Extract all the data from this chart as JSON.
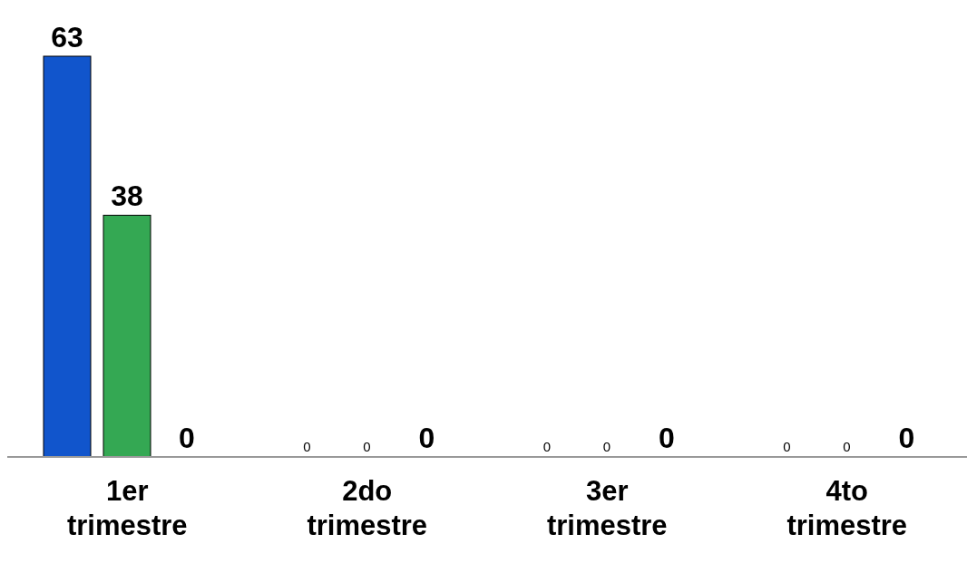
{
  "chart_data": {
    "type": "bar",
    "categories": [
      "1er trimestre",
      "2do trimestre",
      "3er trimestre",
      "4to trimestre"
    ],
    "data_labels": true,
    "legend": false,
    "grid": false,
    "series": [
      {
        "color": "#1155cc",
        "values": [
          63,
          0,
          0,
          0
        ]
      },
      {
        "color": "#34a853",
        "values": [
          38,
          0,
          0,
          0
        ]
      },
      {
        "values": [
          0,
          0,
          0,
          0
        ]
      }
    ]
  }
}
